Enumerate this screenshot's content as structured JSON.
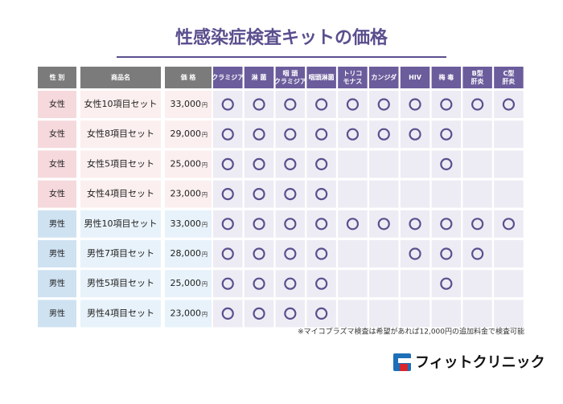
{
  "header": {
    "title": "性感染症検査キットの価格"
  },
  "table": {
    "columns": [
      [
        "性 別"
      ],
      [
        "商品名"
      ],
      [
        "価 格"
      ],
      [
        "クラミジア"
      ],
      [
        "淋 菌"
      ],
      [
        "咽 頭",
        "クラミジア"
      ],
      [
        "咽頭淋菌"
      ],
      [
        "トリコ",
        "モナス"
      ],
      [
        "カンジダ"
      ],
      [
        "HIV"
      ],
      [
        "梅 毒"
      ],
      [
        "B型",
        "肝炎"
      ],
      [
        "C型",
        "肝炎"
      ]
    ],
    "price_unit": "円",
    "rows": [
      {
        "sex": "女性",
        "name": "女性10項目セット",
        "price": "33,000",
        "tests": [
          true,
          true,
          true,
          true,
          true,
          true,
          true,
          true,
          true,
          true
        ]
      },
      {
        "sex": "女性",
        "name": "女性8項目セット",
        "price": "29,000",
        "tests": [
          true,
          true,
          true,
          true,
          true,
          true,
          true,
          true,
          false,
          false
        ]
      },
      {
        "sex": "女性",
        "name": "女性5項目セット",
        "price": "25,000",
        "tests": [
          true,
          true,
          true,
          true,
          false,
          false,
          false,
          true,
          false,
          false
        ]
      },
      {
        "sex": "女性",
        "name": "女性4項目セット",
        "price": "23,000",
        "tests": [
          true,
          true,
          true,
          true,
          false,
          false,
          false,
          false,
          false,
          false
        ]
      },
      {
        "sex": "男性",
        "name": "男性10項目セット",
        "price": "33,000",
        "tests": [
          true,
          true,
          true,
          true,
          true,
          true,
          true,
          true,
          true,
          true
        ]
      },
      {
        "sex": "男性",
        "name": "男性7項目セット",
        "price": "28,000",
        "tests": [
          true,
          true,
          true,
          true,
          false,
          false,
          true,
          true,
          true,
          false
        ]
      },
      {
        "sex": "男性",
        "name": "男性5項目セット",
        "price": "25,000",
        "tests": [
          true,
          true,
          true,
          true,
          false,
          false,
          false,
          true,
          false,
          false
        ]
      },
      {
        "sex": "男性",
        "name": "男性4項目セット",
        "price": "23,000",
        "tests": [
          true,
          true,
          true,
          true,
          false,
          false,
          false,
          false,
          false,
          false
        ]
      }
    ],
    "note": "※マイコプラズマ検査は希望があれば12,000円の追加料金で検査可能"
  },
  "footer": {
    "brand": "フィットクリニック"
  }
}
